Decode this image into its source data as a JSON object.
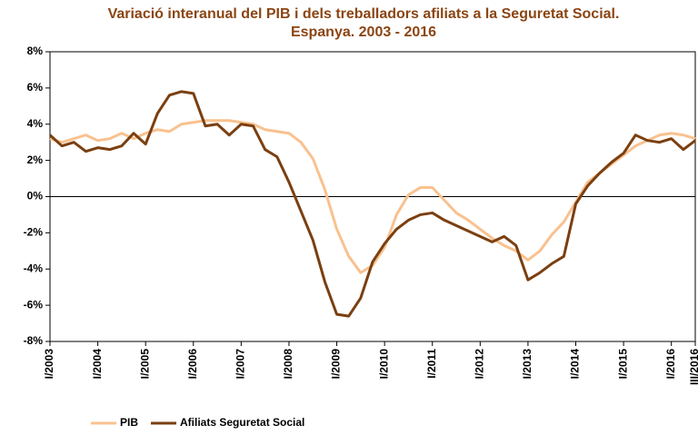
{
  "chart_data": {
    "type": "line",
    "title": "Variació interanual del PIB i dels treballadors afiliats a la Seguretat Social. Espanya. 2003 - 2016",
    "categories": [
      "I/2003",
      null,
      null,
      null,
      "I/2004",
      null,
      null,
      null,
      "I/2005",
      null,
      null,
      null,
      "I/2006",
      null,
      null,
      null,
      "I/2007",
      null,
      null,
      null,
      "I/2008",
      null,
      null,
      null,
      "I/2009",
      null,
      null,
      null,
      "I/2010",
      null,
      null,
      null,
      "I/2011",
      null,
      null,
      null,
      "I/2012",
      null,
      null,
      null,
      "I/2013",
      null,
      null,
      null,
      "I/2014",
      null,
      null,
      null,
      "I/2015",
      null,
      null,
      null,
      "I/2016",
      null,
      "III/2016"
    ],
    "series": [
      {
        "name": "PIB",
        "color": "#f9c18f",
        "values": [
          3.2,
          3.0,
          3.2,
          3.4,
          3.1,
          3.2,
          3.5,
          3.2,
          3.5,
          3.7,
          3.6,
          4.0,
          4.1,
          4.2,
          4.2,
          4.2,
          4.1,
          4.0,
          3.7,
          3.6,
          3.5,
          3.0,
          2.1,
          0.4,
          -1.8,
          -3.3,
          -4.2,
          -3.8,
          -2.8,
          -1.0,
          0.1,
          0.5,
          0.5,
          -0.2,
          -0.9,
          -1.3,
          -1.8,
          -2.3,
          -2.7,
          -3.0,
          -3.5,
          -3.0,
          -2.1,
          -1.4,
          -0.3,
          0.8,
          1.3,
          1.8,
          2.3,
          2.8,
          3.1,
          3.4,
          3.5,
          3.4,
          3.2
        ]
      },
      {
        "name": "Afiliats Seguretat Social",
        "color": "#7b3f10",
        "values": [
          3.4,
          2.8,
          3.0,
          2.5,
          2.7,
          2.6,
          2.8,
          3.5,
          2.9,
          4.6,
          5.6,
          5.8,
          5.7,
          3.9,
          4.0,
          3.4,
          4.0,
          3.9,
          2.6,
          2.2,
          0.8,
          -0.8,
          -2.4,
          -4.7,
          -6.5,
          -6.6,
          -5.6,
          -3.6,
          -2.6,
          -1.8,
          -1.3,
          -1.0,
          -0.9,
          -1.3,
          -1.6,
          -1.9,
          -2.2,
          -2.5,
          -2.2,
          -2.7,
          -4.6,
          -4.2,
          -3.7,
          -3.3,
          -0.4,
          0.6,
          1.3,
          1.9,
          2.4,
          3.4,
          3.1,
          3.0,
          3.2,
          2.6,
          3.1
        ]
      }
    ],
    "ylim": [
      -8,
      8
    ],
    "yticks": [
      {
        "value": -8,
        "label": "-8%"
      },
      {
        "value": -6,
        "label": "-6%"
      },
      {
        "value": -4,
        "label": "-4%"
      },
      {
        "value": -2,
        "label": "-2%"
      },
      {
        "value": 0,
        "label": "0%"
      },
      {
        "value": 2,
        "label": "2%"
      },
      {
        "value": 4,
        "label": "4%"
      },
      {
        "value": 6,
        "label": "6%"
      },
      {
        "value": 8,
        "label": "8%"
      }
    ],
    "legend": "bottom"
  }
}
